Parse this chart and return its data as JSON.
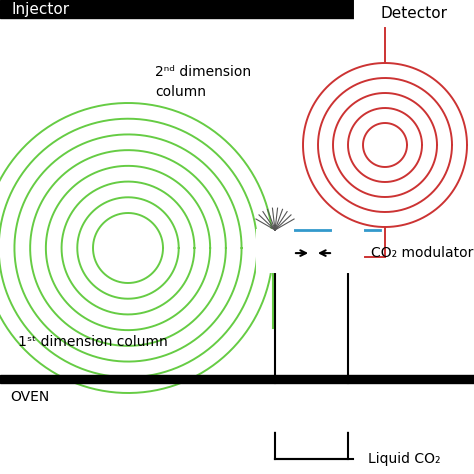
{
  "bg_color": "#ffffff",
  "green_color": "#66cc44",
  "red_color": "#cc3333",
  "blue_color": "#3399cc",
  "black_color": "#000000",
  "injector_label": "Injector",
  "detector_label": "Detector",
  "col1_label": "1ˢᵗ dimension column",
  "col2_label": "2ⁿᵈ dimension\ncolumn",
  "co2_label": "CO₂ modulator",
  "liquid_label": "Liquid CO₂",
  "oven_label": "OVEN"
}
